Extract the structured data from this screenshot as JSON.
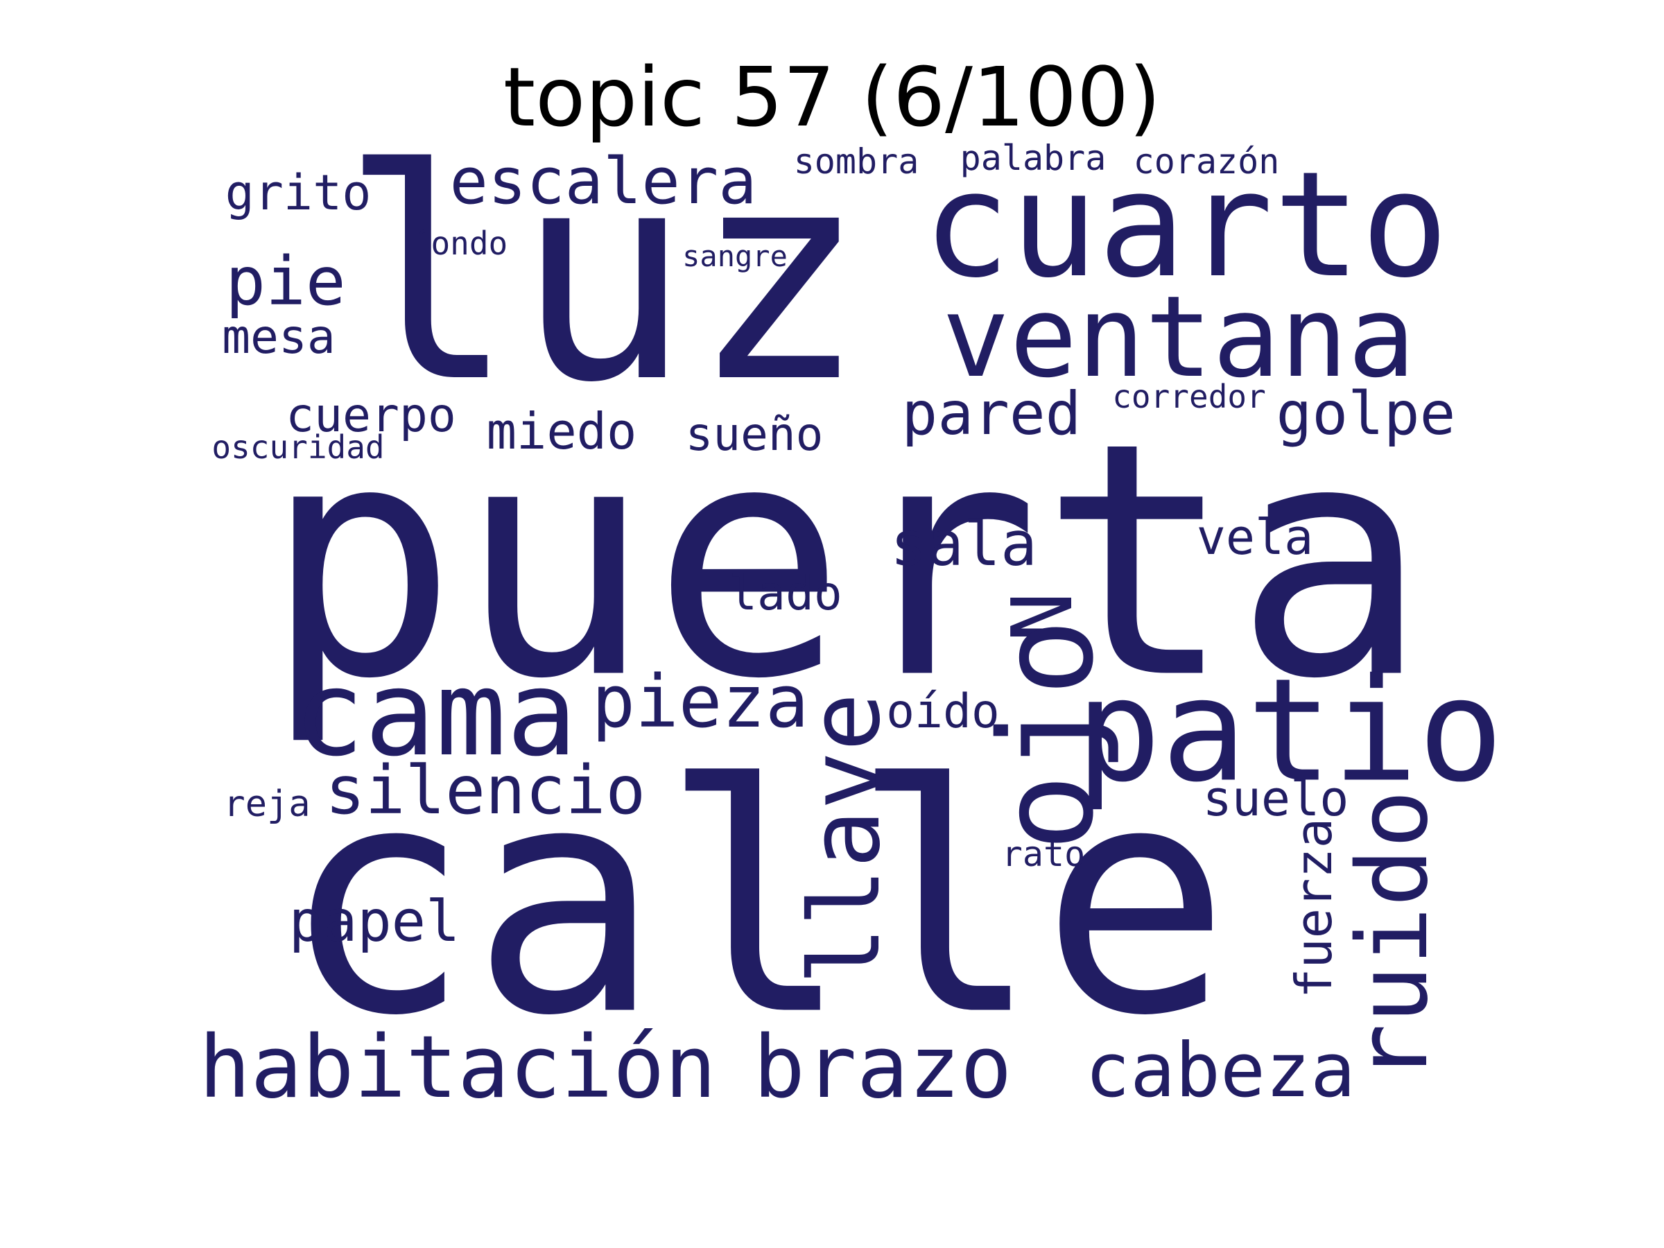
{
  "title": "topic 57 (6/100)",
  "colors": {
    "background": "#ffffff",
    "title": "#000000",
    "words": "#211d63"
  },
  "words": [
    "luz",
    "cuarto",
    "ventana",
    "escalera",
    "grito",
    "sombra",
    "palabra",
    "corazón",
    "fondo",
    "sangre",
    "pie",
    "mesa",
    "pared",
    "golpe",
    "corredor",
    "cuerpo",
    "miedo",
    "sueño",
    "oscuridad",
    "puerta",
    "sala",
    "vela",
    "lado",
    "N",
    "cama",
    "pieza",
    "oído",
    "ojo",
    "patio",
    "llave",
    "silencio",
    "suelo",
    "reja",
    "calle",
    "ruido",
    "rato",
    "papel",
    "fuerza",
    "habitación",
    "brazo",
    "cabeza"
  ]
}
